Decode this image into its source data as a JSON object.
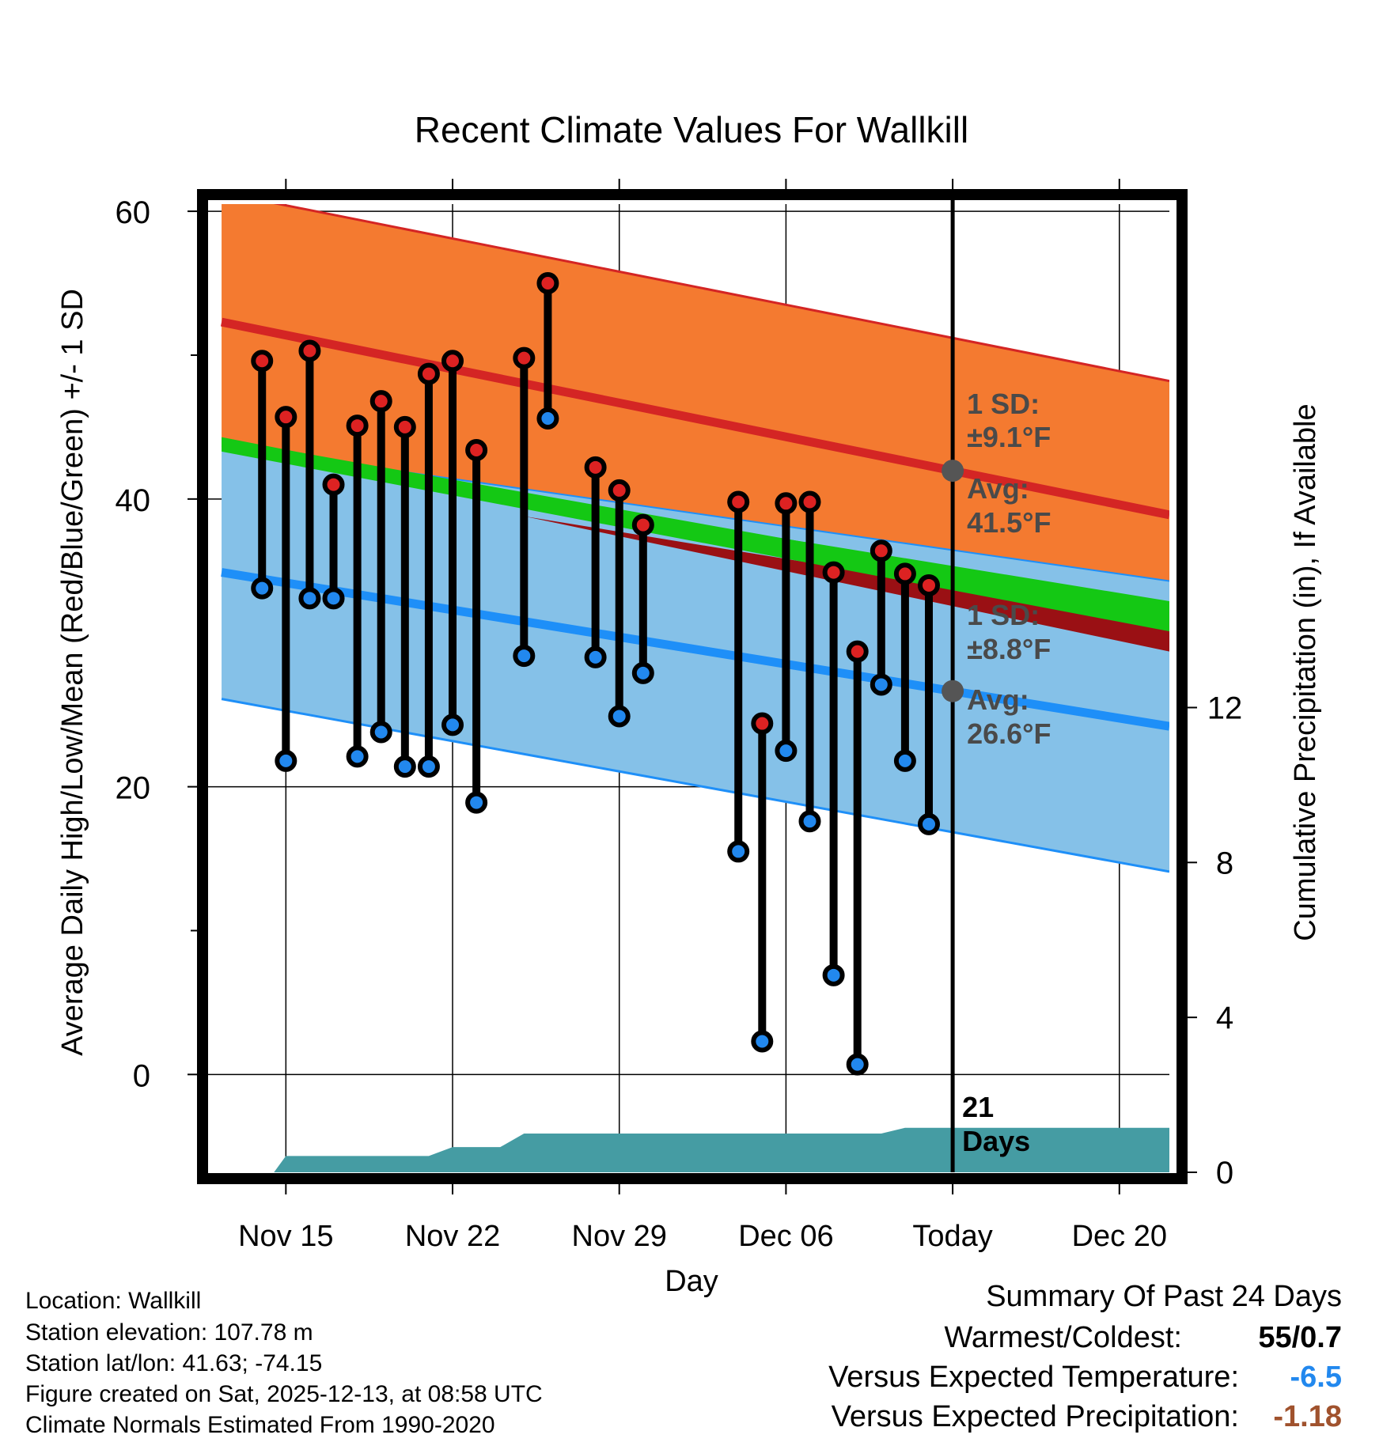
{
  "chart_data": {
    "type": "line",
    "title": "Recent Climate Values For Wallkill",
    "xlabel": "Day",
    "ylabel": "Average Daily High/Low/Mean (Red/Blue/Green) +/- 1 SD",
    "y2label": "Cumulative Precipitation (in), If Available",
    "ylim": [
      -6.8,
      60.5
    ],
    "y2lim": [
      0,
      25
    ],
    "y_ticks": [
      "0",
      "20",
      "40",
      "60"
    ],
    "y2_ticks": [
      "0",
      "4",
      "8",
      "12"
    ],
    "xlim": [
      -3.3,
      37.1
    ],
    "x_ticks": [
      {
        "day": 0,
        "label": "Nov 15"
      },
      {
        "day": 7,
        "label": "Nov 22"
      },
      {
        "day": 14,
        "label": "Nov 29"
      },
      {
        "day": 21,
        "label": "Dec 06"
      },
      {
        "day": 28,
        "label": "Today"
      },
      {
        "day": 35,
        "label": "Dec 20"
      }
    ],
    "today_day": 28,
    "today_label_line1": "21",
    "today_label_line2": "Days",
    "normals": {
      "start_day": -2.7,
      "end_day": 37.1,
      "high_avg": [
        52.3,
        38.9
      ],
      "high_sd_top": [
        61.3,
        48.2
      ],
      "low_avg": [
        34.9,
        24.2
      ],
      "low_sd_bottom": [
        26.1,
        14.1
      ],
      "mean_start": [
        43.6,
        30.8
      ],
      "mean_end": [
        44.2,
        31.5
      ]
    },
    "annotations": {
      "high_sd": "1 SD:",
      "high_sd_value": "±9.1°F",
      "high_avg": "Avg:",
      "high_avg_value": "41.5°F",
      "low_sd": "1 SD:",
      "low_sd_value": "±8.8°F",
      "low_avg": "Avg:",
      "low_avg_value": "26.6°F"
    },
    "series": [
      {
        "name": "Daily High",
        "color": "#dd2222",
        "points": [
          [
            -1,
            49.6
          ],
          [
            0,
            45.7
          ],
          [
            1,
            50.3
          ],
          [
            2,
            41.0
          ],
          [
            3,
            45.1
          ],
          [
            4,
            46.8
          ],
          [
            5,
            45.0
          ],
          [
            6,
            48.7
          ],
          [
            7,
            49.6
          ],
          [
            8,
            43.4
          ],
          [
            10,
            49.8
          ],
          [
            11,
            55.0
          ],
          [
            13,
            42.2
          ],
          [
            14,
            40.6
          ],
          [
            15,
            38.2
          ],
          [
            19,
            39.8
          ],
          [
            20,
            24.4
          ],
          [
            21,
            39.7
          ],
          [
            22,
            39.8
          ],
          [
            23,
            34.9
          ],
          [
            24,
            29.4
          ],
          [
            25,
            36.4
          ],
          [
            26,
            34.8
          ],
          [
            27,
            34.0
          ]
        ]
      },
      {
        "name": "Daily Low",
        "color": "#2288ee",
        "points": [
          [
            -1,
            33.8
          ],
          [
            0,
            21.8
          ],
          [
            1,
            33.1
          ],
          [
            2,
            33.1
          ],
          [
            3,
            22.1
          ],
          [
            4,
            23.8
          ],
          [
            5,
            21.4
          ],
          [
            6,
            21.4
          ],
          [
            7,
            24.3
          ],
          [
            8,
            18.9
          ],
          [
            10,
            29.1
          ],
          [
            11,
            45.6
          ],
          [
            13,
            29.0
          ],
          [
            14,
            24.9
          ],
          [
            15,
            27.9
          ],
          [
            19,
            15.5
          ],
          [
            20,
            2.3
          ],
          [
            21,
            22.5
          ],
          [
            22,
            17.6
          ],
          [
            23,
            6.9
          ],
          [
            24,
            0.7
          ],
          [
            25,
            27.1
          ],
          [
            26,
            21.8
          ],
          [
            27,
            17.4
          ]
        ]
      },
      {
        "name": "Cumulative Precipitation",
        "color": "#459ca3",
        "points": [
          [
            -2.7,
            0
          ],
          [
            -0.5,
            0
          ],
          [
            0,
            0.42
          ],
          [
            6,
            0.42
          ],
          [
            7,
            0.65
          ],
          [
            9,
            0.65
          ],
          [
            10,
            1.0
          ],
          [
            25,
            1.0
          ],
          [
            26,
            1.15
          ],
          [
            37.1,
            1.15
          ]
        ]
      }
    ],
    "colors": {
      "high_band": "#f47a30",
      "high_line": "#d42524",
      "low_band": "#85c1e8",
      "low_line": "#1e8ff8",
      "mean_band_green": "#14c814",
      "mean_band_dark": "#9a1014",
      "precip": "#459ca3",
      "annotation": "#4a4a4a"
    }
  },
  "footer": {
    "location": "Location: Wallkill",
    "elevation": "Station elevation: 107.78 m",
    "latlon": "Station lat/lon: 41.63; -74.15",
    "created": "Figure created on Sat, 2025-12-13, at 08:58 UTC",
    "normals": "Climate Normals Estimated From 1990-2020"
  },
  "summary": {
    "heading": "Summary Of Past 24 Days",
    "warm_cold_label": "Warmest/Coldest:",
    "warm_cold_value": "55/0.7",
    "temp_label": "Versus Expected Temperature:",
    "temp_value": "-6.5",
    "temp_color": "#2288ee",
    "precip_label": "Versus Expected Precipitation:",
    "precip_value": "-1.18",
    "precip_color": "#a0522d"
  }
}
